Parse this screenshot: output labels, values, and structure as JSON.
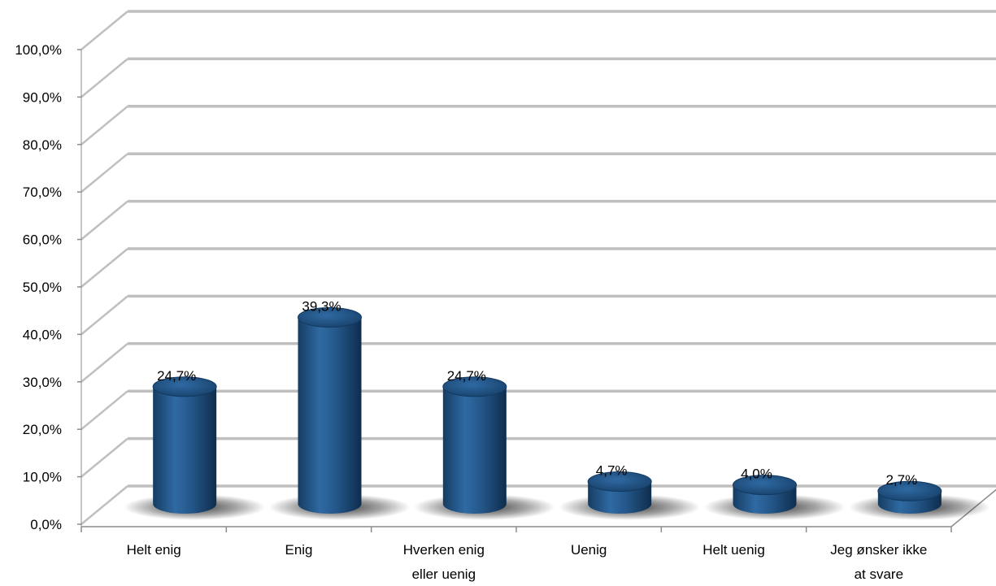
{
  "chart_data": {
    "type": "bar",
    "style": "3d-cylinder",
    "categories": [
      [
        "Helt enig"
      ],
      [
        "Enig"
      ],
      [
        "Hverken enig",
        "eller uenig"
      ],
      [
        "Uenig"
      ],
      [
        "Helt uenig"
      ],
      [
        "Jeg ønsker ikke",
        "at svare"
      ]
    ],
    "values": [
      24.7,
      39.3,
      24.7,
      4.7,
      4.0,
      2.7
    ],
    "data_labels": [
      "24,7%",
      "39,3%",
      "24,7%",
      "4,7%",
      "4,0%",
      "2,7%"
    ],
    "yticks": [
      "0,0%",
      "10,0%",
      "20,0%",
      "30,0%",
      "40,0%",
      "50,0%",
      "60,0%",
      "70,0%",
      "80,0%",
      "90,0%",
      "100,0%"
    ],
    "ylim": [
      0,
      100
    ],
    "grid": true,
    "legend": "none",
    "colors": {
      "bar": "#1f4e79",
      "bar_light": "#3a78b5",
      "bar_dark": "#0f2d4d",
      "grid": "#bfbfbf",
      "axis": "#8c8c8c"
    }
  }
}
